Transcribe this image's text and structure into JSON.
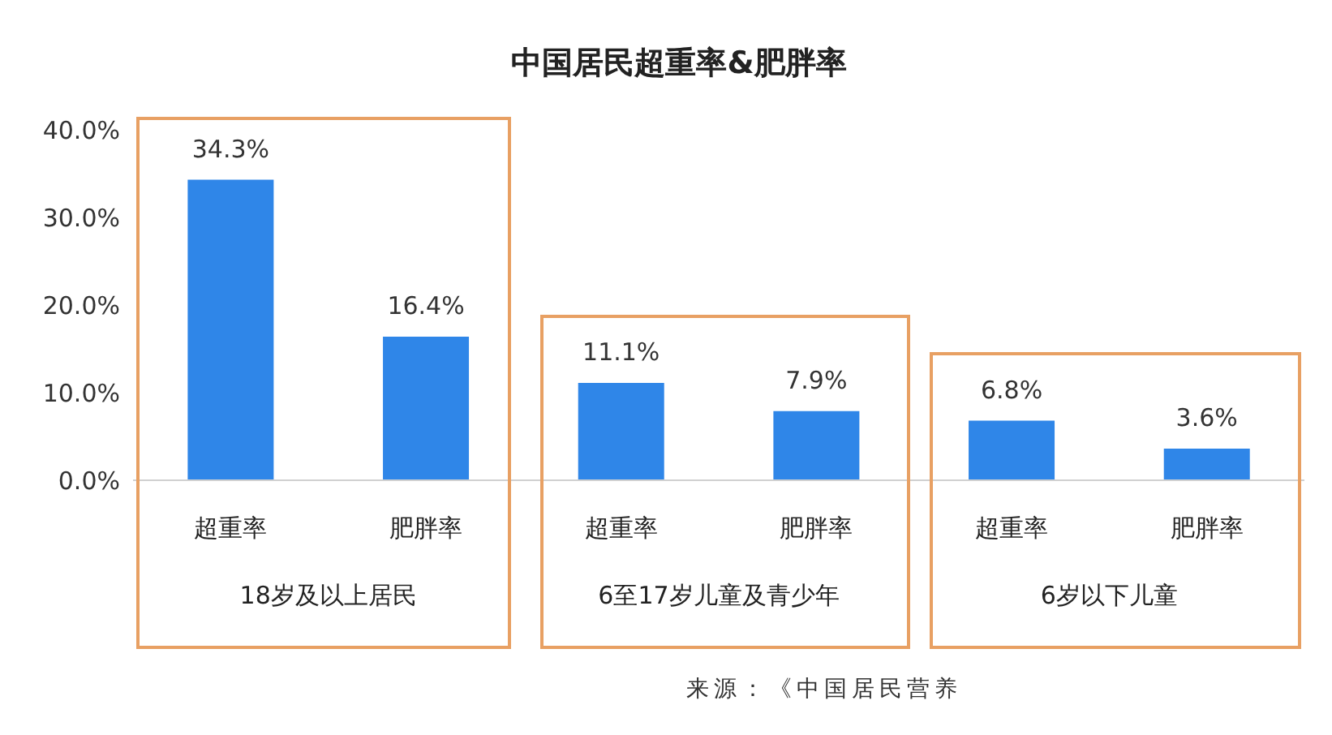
{
  "chart_data": {
    "type": "bar",
    "title": "中国居民超重率&肥胖率",
    "categories": [
      "超重率",
      "肥胖率",
      "超重率",
      "肥胖率",
      "超重率",
      "肥胖率"
    ],
    "values": [
      34.3,
      16.4,
      11.1,
      7.9,
      6.8,
      3.6
    ],
    "value_labels": [
      "34.3%",
      "16.4%",
      "11.1%",
      "7.9%",
      "6.8%",
      "3.6%"
    ],
    "color": "#2f86e8",
    "ylim": [
      0,
      40
    ],
    "yticks": [
      {
        "value": 0,
        "label": "0.0%"
      },
      {
        "value": 10,
        "label": "10.0%"
      },
      {
        "value": 20,
        "label": "20.0%"
      },
      {
        "value": 30,
        "label": "30.0%"
      },
      {
        "value": 40,
        "label": "40.0%"
      }
    ],
    "annotations": [
      "18岁及以上居民",
      "6至17岁儿童及青少年",
      "6岁以下儿童",
      "来源：《中国居民营养"
    ]
  }
}
